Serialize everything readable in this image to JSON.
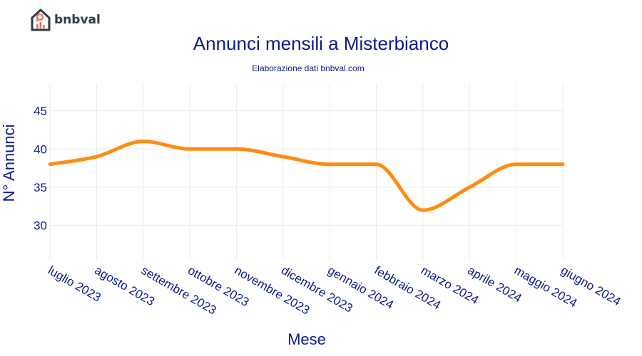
{
  "brand": {
    "name": "bnbval",
    "colors": {
      "house": "#2b3a4a",
      "pin": "#e8735a",
      "bars": "#e8735a"
    }
  },
  "chart_data": {
    "type": "line",
    "title": "Annunci mensili a Misterbianco",
    "subtitle": "Elaborazione dati bnbval.com",
    "xlabel": "Mese",
    "ylabel": "N° Annunci",
    "categories": [
      "luglio 2023",
      "agosto 2023",
      "settembre 2023",
      "ottobre 2023",
      "novembre 2023",
      "dicembre 2023",
      "gennaio 2024",
      "febbraio 2024",
      "marzo 2024",
      "aprile 2024",
      "maggio 2024",
      "giugno 2024"
    ],
    "series": [
      {
        "values": [
          38,
          39,
          41,
          40,
          40,
          39,
          38,
          38,
          32,
          35,
          38,
          38
        ],
        "color": "#ff8c12"
      }
    ],
    "yticks": [
      30,
      35,
      40,
      45
    ],
    "ylim": [
      25.5,
      48.5
    ],
    "grid": true,
    "smooth": true,
    "colors": {
      "text": "#0a1a8c",
      "grid": "#ececec",
      "line": "#ff8c12"
    }
  }
}
